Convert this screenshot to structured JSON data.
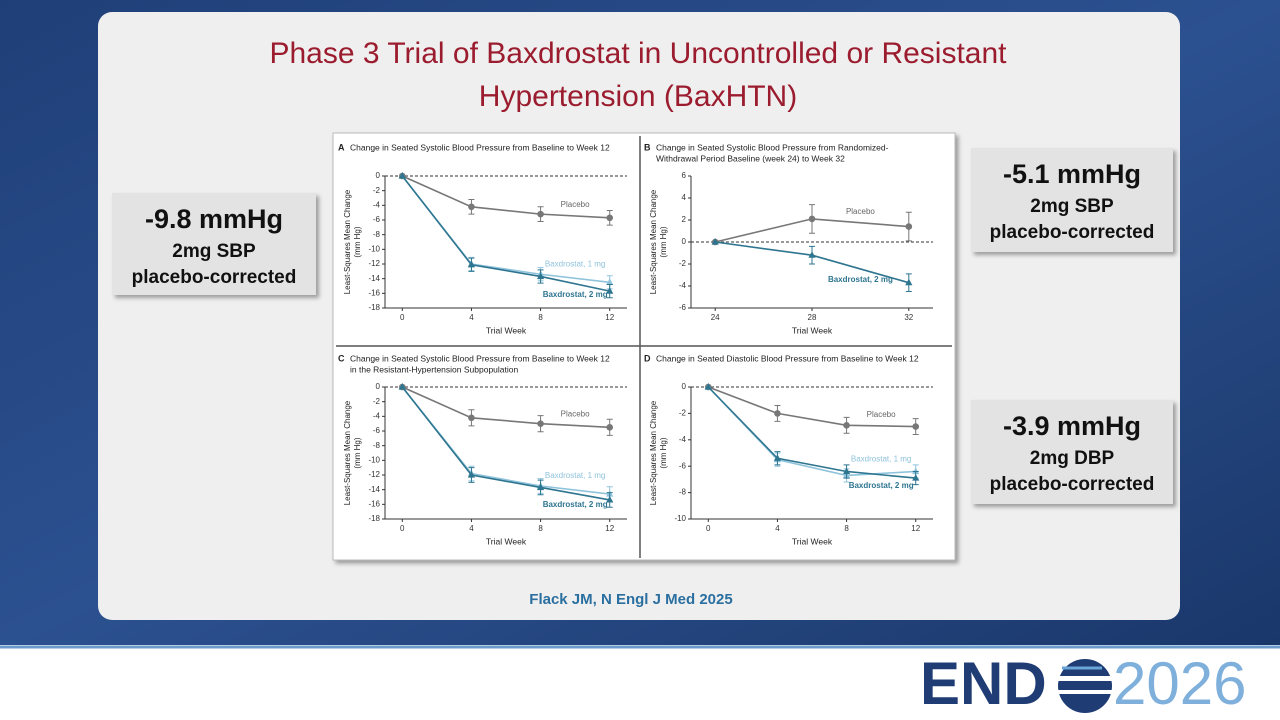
{
  "slide": {
    "title": [
      "Phase 3 Trial of Baxdrostat in Uncontrolled or Resistant",
      "Hypertension (BaxHTN)"
    ],
    "callouts": [
      {
        "value": "-9.8 mmHg",
        "lines": [
          "2mg SBP",
          "placebo-corrected"
        ]
      },
      {
        "value": "-5.1 mmHg",
        "lines": [
          "2mg SBP",
          "placebo-corrected"
        ]
      },
      {
        "value": "-3.9 mmHg",
        "lines": [
          "2mg DBP",
          "placebo-corrected"
        ]
      }
    ],
    "citation": "Flack JM, N Engl J Med 2025",
    "logo": {
      "left": "END",
      "right": "2026"
    }
  },
  "chart_data": [
    {
      "type": "line",
      "panel": "A",
      "title": [
        "Change in Seated Systolic Blood Pressure from Baseline to Week 12"
      ],
      "ylabel": [
        "Least-Squares Mean Change",
        "(mm Hg)"
      ],
      "xlabel": "Trial Week",
      "x": [
        0,
        4,
        8,
        12
      ],
      "xlim": [
        -1,
        13
      ],
      "xticks": [
        0,
        4,
        8,
        12
      ],
      "ylim": [
        -18,
        0
      ],
      "yticks": [
        0,
        -2,
        -4,
        -6,
        -8,
        -10,
        -12,
        -14,
        -16,
        -18
      ],
      "hline": 0,
      "series": [
        {
          "name": "Placebo",
          "color": "#777777",
          "marker": "circle",
          "values": [
            0,
            -4.2,
            -5.2,
            -5.7
          ],
          "errors": [
            0,
            1.0,
            1.0,
            1.0
          ]
        },
        {
          "name": "Baxdrostat, 1 mg",
          "color": "#8fc3dc",
          "marker": "triangle",
          "values": [
            0,
            -12,
            -13.4,
            -14.5
          ],
          "errors": [
            0,
            0.9,
            0.9,
            0.9
          ]
        },
        {
          "name": "Baxdrostat, 2 mg",
          "color": "#2e7590",
          "marker": "triangle",
          "values": [
            0,
            -12.1,
            -13.7,
            -15.7
          ],
          "errors": [
            0,
            0.9,
            0.9,
            0.9
          ]
        }
      ]
    },
    {
      "type": "line",
      "panel": "B",
      "title": [
        "Change in Seated Systolic Blood Pressure from Randomized-",
        "Withdrawal Period Baseline (week 24) to Week 32"
      ],
      "ylabel": [
        "Least-Squares Mean Change",
        "(mm Hg)"
      ],
      "xlabel": "Trial Week",
      "x": [
        24,
        28,
        32
      ],
      "xlim": [
        23,
        33
      ],
      "xticks": [
        24,
        28,
        32
      ],
      "ylim": [
        -6,
        6
      ],
      "yticks": [
        6,
        4,
        2,
        0,
        -2,
        -4,
        -6
      ],
      "hline": 0,
      "series": [
        {
          "name": "Placebo",
          "color": "#777777",
          "marker": "circle",
          "values": [
            0,
            2.1,
            1.4
          ],
          "errors": [
            0,
            1.3,
            1.3
          ]
        },
        {
          "name": "Baxdrostat, 2 mg",
          "color": "#2e7590",
          "marker": "triangle",
          "values": [
            0,
            -1.2,
            -3.7
          ],
          "errors": [
            0,
            0.8,
            0.8
          ]
        }
      ]
    },
    {
      "type": "line",
      "panel": "C",
      "title": [
        "Change in Seated Systolic Blood Pressure from Baseline to Week 12",
        "in the Resistant-Hypertension Subpopulation"
      ],
      "ylabel": [
        "Least-Squares Mean Change",
        "(mm Hg)"
      ],
      "xlabel": "Trial Week",
      "x": [
        0,
        4,
        8,
        12
      ],
      "xlim": [
        -1,
        13
      ],
      "xticks": [
        0,
        4,
        8,
        12
      ],
      "ylim": [
        -18,
        0
      ],
      "yticks": [
        0,
        -2,
        -4,
        -6,
        -8,
        -10,
        -12,
        -14,
        -16,
        -18
      ],
      "hline": 0,
      "series": [
        {
          "name": "Placebo",
          "color": "#777777",
          "marker": "circle",
          "values": [
            0,
            -4.2,
            -5,
            -5.5
          ],
          "errors": [
            0,
            1.1,
            1.1,
            1.1
          ]
        },
        {
          "name": "Baxdrostat, 1 mg",
          "color": "#8fc3dc",
          "marker": "triangle",
          "values": [
            0,
            -11.8,
            -13.5,
            -14.6
          ],
          "errors": [
            0,
            1.0,
            1.0,
            1.0
          ]
        },
        {
          "name": "Baxdrostat, 2 mg",
          "color": "#2e7590",
          "marker": "triangle",
          "values": [
            0,
            -12,
            -13.7,
            -15.4
          ],
          "errors": [
            0,
            1.0,
            1.0,
            1.0
          ]
        }
      ]
    },
    {
      "type": "line",
      "panel": "D",
      "title": [
        "Change in Seated Diastolic Blood Pressure from Baseline to Week 12"
      ],
      "ylabel": [
        "Least-Squares Mean Change",
        "(mm Hg)"
      ],
      "xlabel": "Trial Week",
      "x": [
        0,
        4,
        8,
        12
      ],
      "xlim": [
        -1,
        13
      ],
      "xticks": [
        0,
        4,
        8,
        12
      ],
      "ylim": [
        -10,
        0
      ],
      "yticks": [
        0,
        -2,
        -4,
        -6,
        -8,
        -10
      ],
      "hline": 0,
      "series": [
        {
          "name": "Placebo",
          "color": "#777777",
          "marker": "circle",
          "values": [
            0,
            -2,
            -2.9,
            -3
          ],
          "errors": [
            0,
            0.6,
            0.6,
            0.6
          ]
        },
        {
          "name": "Baxdrostat, 1 mg",
          "color": "#8fc3dc",
          "marker": "triangle",
          "values": [
            0,
            -5.5,
            -6.7,
            -6.4
          ],
          "errors": [
            0,
            0.5,
            0.5,
            0.5
          ]
        },
        {
          "name": "Baxdrostat, 2 mg",
          "color": "#2e7590",
          "marker": "triangle",
          "values": [
            0,
            -5.4,
            -6.4,
            -6.9
          ],
          "errors": [
            0,
            0.5,
            0.5,
            0.5
          ]
        }
      ]
    }
  ]
}
